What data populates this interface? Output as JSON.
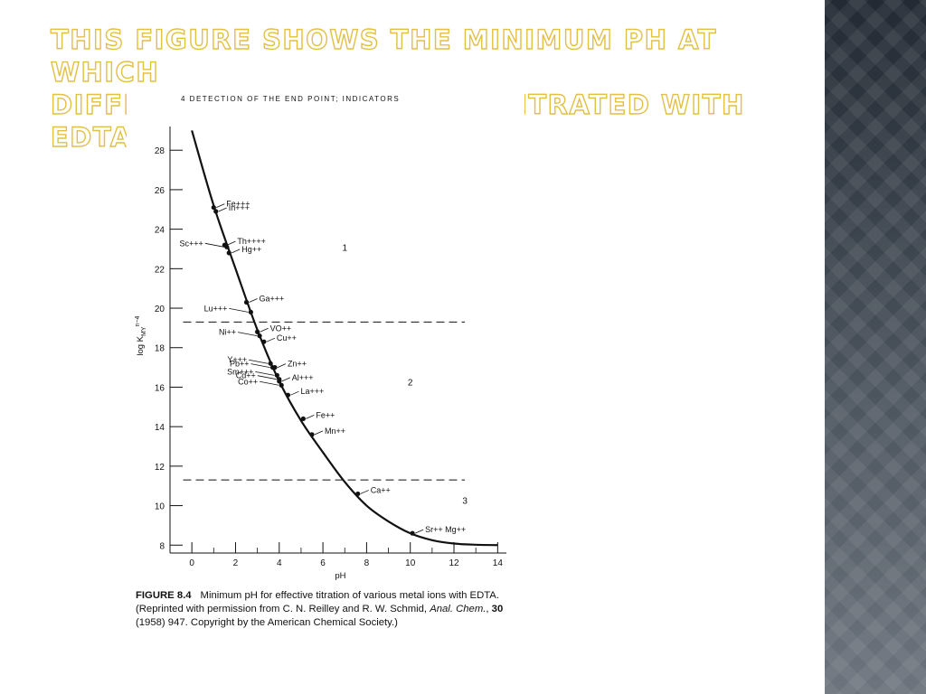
{
  "slide": {
    "title_lines": [
      "This figure shows the minimum pH at which",
      "different metals can be titrated with EDTA:"
    ],
    "colors": {
      "title": "#e2c044",
      "side_strip": "#3a414a",
      "ink": "#111111"
    }
  },
  "figure": {
    "cropped_header": "4 DETECTION OF THE END POINT; INDICATORS",
    "caption": {
      "fig_no": "FIGURE 8.4",
      "part1": "Minimum pH for effective titration of various metal ions with EDTA. (Reprinted with permission from C. N. Reilley and R. W. Schmid, ",
      "journal": "Anal. Chem.",
      "sep": ", ",
      "volume": "30",
      "part2": " (1958) 947. Copyright by the American Chemical Society.)"
    }
  },
  "chart_data": {
    "type": "line",
    "title": "",
    "xlabel": "pH",
    "ylabel_html": "log K<sub>MY</sub>n−4",
    "ylabel_parts": {
      "base": "log K",
      "sub": "MY",
      "sup": "n−4"
    },
    "xlim": [
      -1,
      14.4
    ],
    "ylim": [
      7.6,
      29.2
    ],
    "xticks": [
      0,
      2,
      4,
      6,
      8,
      10,
      12,
      14
    ],
    "yticks": [
      8,
      10,
      12,
      14,
      16,
      18,
      20,
      22,
      24,
      26,
      28
    ],
    "curve": {
      "x": [
        0.0,
        1.0,
        2.0,
        3.0,
        4.0,
        5.0,
        6.0,
        7.0,
        8.0,
        9.0,
        10.0,
        11.0,
        12.0,
        13.0,
        14.0
      ],
      "y": [
        29.0,
        25.2,
        22.0,
        18.9,
        16.3,
        14.3,
        12.7,
        11.2,
        10.0,
        9.2,
        8.6,
        8.25,
        8.08,
        8.02,
        8.0
      ]
    },
    "boundaries": [
      {
        "y": 19.3,
        "xmin": -0.4,
        "xmax": 12.5
      },
      {
        "y": 11.3,
        "xmin": -0.4,
        "xmax": 12.5
      }
    ],
    "regions": [
      {
        "label": "1",
        "x": 7.0,
        "y": 22.9
      },
      {
        "label": "2",
        "x": 10.0,
        "y": 16.1
      },
      {
        "label": "3",
        "x": 12.5,
        "y": 10.1
      }
    ],
    "points": [
      {
        "ion": "Fe+++",
        "x": 1.0,
        "y": 25.1,
        "side": "right"
      },
      {
        "ion": "In+++",
        "x": 1.1,
        "y": 24.9,
        "side": "right"
      },
      {
        "ion": "Th++++",
        "x": 1.5,
        "y": 23.2,
        "side": "right"
      },
      {
        "ion": "Sc+++",
        "x": 1.6,
        "y": 23.1,
        "side": "left"
      },
      {
        "ion": "Hg++",
        "x": 1.7,
        "y": 22.8,
        "side": "right"
      },
      {
        "ion": "Ga+++",
        "x": 2.5,
        "y": 20.3,
        "side": "right"
      },
      {
        "ion": "Lu+++",
        "x": 2.7,
        "y": 19.8,
        "side": "left"
      },
      {
        "ion": "VO++",
        "x": 3.0,
        "y": 18.8,
        "side": "right"
      },
      {
        "ion": "Ni++",
        "x": 3.1,
        "y": 18.6,
        "side": "left"
      },
      {
        "ion": "Cu++",
        "x": 3.3,
        "y": 18.3,
        "side": "right"
      },
      {
        "ion": "Zn++",
        "x": 3.8,
        "y": 17.0,
        "side": "right"
      },
      {
        "ion": "Y+++",
        "x": 3.6,
        "y": 17.2,
        "side": "left"
      },
      {
        "ion": "Pb++",
        "x": 3.7,
        "y": 17.0,
        "side": "left"
      },
      {
        "ion": "Al+++",
        "x": 4.0,
        "y": 16.3,
        "side": "right"
      },
      {
        "ion": "Sm+++",
        "x": 3.9,
        "y": 16.6,
        "side": "left"
      },
      {
        "ion": "Cd++",
        "x": 4.0,
        "y": 16.4,
        "side": "left"
      },
      {
        "ion": "La+++",
        "x": 4.4,
        "y": 15.6,
        "side": "right"
      },
      {
        "ion": "Co++",
        "x": 4.1,
        "y": 16.1,
        "side": "left"
      },
      {
        "ion": "Fe++",
        "x": 5.1,
        "y": 14.4,
        "side": "right"
      },
      {
        "ion": "Mn++",
        "x": 5.5,
        "y": 13.6,
        "side": "right"
      },
      {
        "ion": "Ca++",
        "x": 7.6,
        "y": 10.6,
        "side": "right"
      },
      {
        "ion": "Sr++ Mg++",
        "x": 10.1,
        "y": 8.6,
        "side": "right"
      }
    ]
  }
}
